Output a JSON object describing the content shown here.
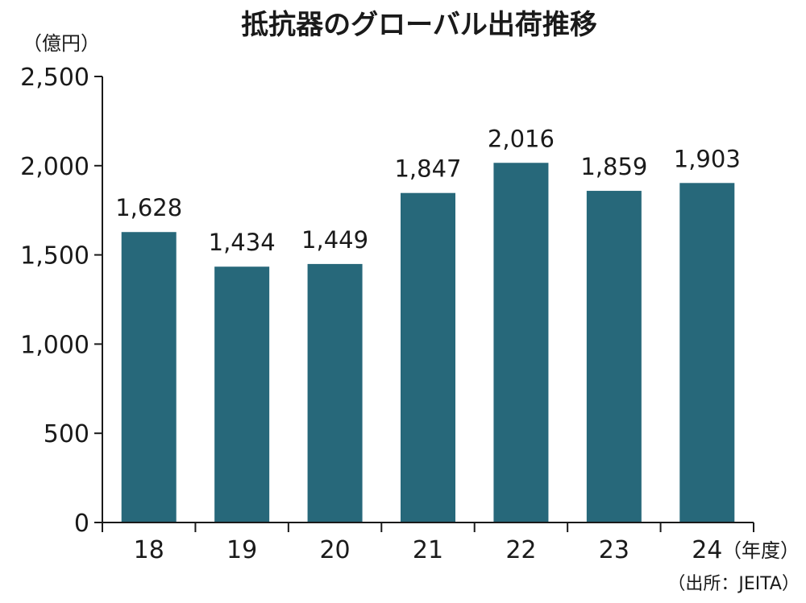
{
  "colors": {
    "bar": "#27687a",
    "axis": "#1a1a1a",
    "text": "#1a1a1a"
  },
  "chart_data": {
    "type": "bar",
    "title": "抵抗器のグローバル出荷推移",
    "ylabel": "（億円）",
    "xlabel": "（年度）",
    "source": "（出所：JEITA）",
    "categories": [
      "18",
      "19",
      "20",
      "21",
      "22",
      "23",
      "24"
    ],
    "values": [
      1628,
      1434,
      1449,
      1847,
      2016,
      1859,
      1903
    ],
    "data_labels": [
      "1,628",
      "1,434",
      "1,449",
      "1,847",
      "2,016",
      "1,859",
      "1,903"
    ],
    "ylim": [
      0,
      2500
    ],
    "yticks": [
      0,
      500,
      1000,
      1500,
      2000,
      2500
    ],
    "ytick_labels": [
      "0",
      "500",
      "1,000",
      "1,500",
      "2,000",
      "2,500"
    ],
    "grid": false,
    "legend": "none"
  }
}
